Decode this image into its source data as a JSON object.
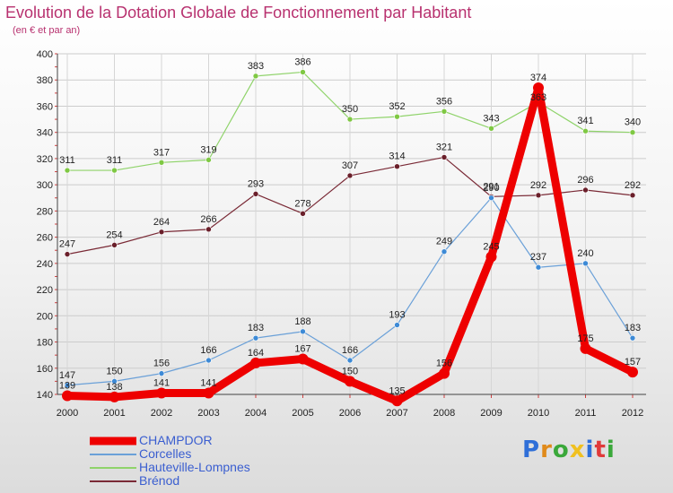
{
  "title": "Evolution de la Dotation Globale de Fonctionnement par Habitant",
  "subtitle": "(en € et par an)",
  "logo": {
    "text": "Proxiti",
    "letters": [
      "P",
      "r",
      "o",
      "x",
      "i",
      "t",
      "i"
    ],
    "colors": [
      "#2f6fd8",
      "#e08a1a",
      "#3aa83a",
      "#f0c020",
      "#2f6fd8",
      "#e03a3a",
      "#3aa83a"
    ]
  },
  "chart_data": {
    "type": "line",
    "title": "Evolution de la Dotation Globale de Fonctionnement par Habitant",
    "subtitle": "(en € et par an)",
    "xlabel": "",
    "ylabel": "",
    "ylim": [
      140,
      400
    ],
    "yticks": [
      140,
      160,
      180,
      200,
      220,
      240,
      260,
      280,
      300,
      320,
      340,
      360,
      380,
      400
    ],
    "grid": true,
    "legend_position": "bottom-left",
    "x": [
      "2000",
      "2001",
      "2002",
      "2003",
      "2004",
      "2005",
      "2006",
      "2007",
      "2008",
      "2009",
      "2010",
      "2011",
      "2012"
    ],
    "series": [
      {
        "name": "Hauteville-Lompnes",
        "color": "#8fd36a",
        "marker": "#7fc843",
        "weight": "thin",
        "values": [
          311,
          311,
          317,
          319,
          383,
          386,
          350,
          352,
          356,
          343,
          363,
          341,
          340
        ],
        "labels": [
          "311",
          "311",
          "317",
          "319",
          "383",
          "386",
          "350",
          "352",
          "356",
          "343",
          "",
          "341",
          "340"
        ]
      },
      {
        "name": "Brénod",
        "color": "#7a2a36",
        "marker": "#6a1f2a",
        "weight": "thin",
        "values": [
          247,
          254,
          264,
          266,
          293,
          278,
          307,
          314,
          321,
          291,
          292,
          296,
          292
        ],
        "labels": [
          "247",
          "254",
          "264",
          "266",
          "293",
          "278",
          "307",
          "314",
          "321",
          "291",
          "292",
          "296",
          "292"
        ]
      },
      {
        "name": "Corcelles",
        "color": "#6aa0d8",
        "marker": "#3d8ad6",
        "weight": "thin",
        "values": [
          147,
          150,
          156,
          166,
          183,
          188,
          166,
          193,
          249,
          290,
          237,
          240,
          183
        ],
        "labels": [
          "147",
          "150",
          "156",
          "166",
          "183",
          "188",
          "166",
          "193",
          "249",
          "290",
          "237",
          "240",
          "183"
        ]
      },
      {
        "name": "CHAMPDOR",
        "color": "#ee0000",
        "marker": "#ee0000",
        "weight": "thick",
        "values": [
          139,
          138,
          141,
          141,
          164,
          167,
          150,
          135,
          156,
          245,
          374,
          175,
          157
        ],
        "labels": [
          "139",
          "138",
          "141",
          "141",
          "164",
          "167",
          "150",
          "135",
          "156",
          "245",
          "374",
          "175",
          "157"
        ]
      }
    ],
    "overlap_labels": [
      {
        "text": "363",
        "x": "2010",
        "value": 363,
        "series": "Hauteville-Lompnes"
      }
    ],
    "legend": [
      "CHAMPDOR",
      "Corcelles",
      "Hauteville-Lompnes",
      "Brénod"
    ]
  }
}
